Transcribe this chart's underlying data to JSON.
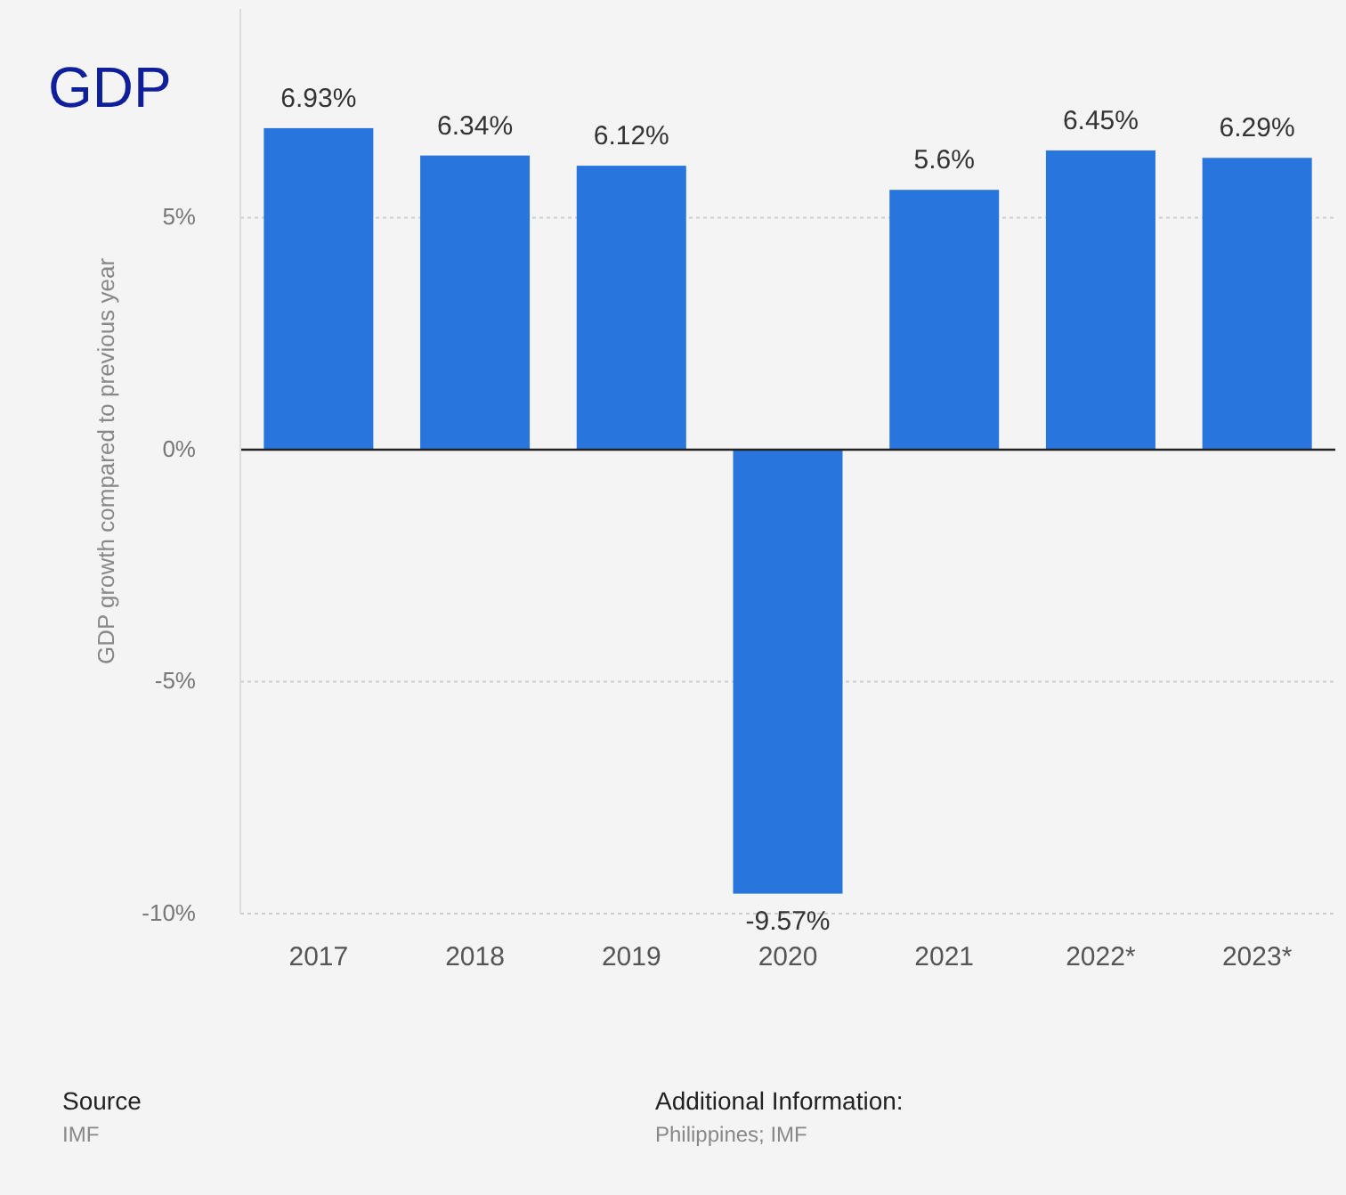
{
  "chart_data": {
    "type": "bar",
    "title": "GDP",
    "ylabel": "GDP growth compared to previous year",
    "categories": [
      "2017",
      "2018",
      "2019",
      "2020",
      "2021",
      "2022*",
      "2023*"
    ],
    "values": [
      6.93,
      6.34,
      6.12,
      -9.57,
      5.6,
      6.45,
      6.29
    ],
    "color": "#2876dd",
    "ylim": [
      -10,
      9.5
    ],
    "yticks": [
      {
        "value": -10,
        "label": "-10%"
      },
      {
        "value": -5,
        "label": "-5%"
      },
      {
        "value": 0,
        "label": "0%"
      },
      {
        "value": 5,
        "label": "5%"
      }
    ],
    "grid": "y",
    "value_labels": [
      "6.93%",
      "6.34%",
      "6.12%",
      "-9.57%",
      "5.6%",
      "6.45%",
      "6.29%"
    ],
    "annotations": [
      "Source",
      "IMF",
      "Additional Information:",
      "Philippines; IMF"
    ]
  }
}
